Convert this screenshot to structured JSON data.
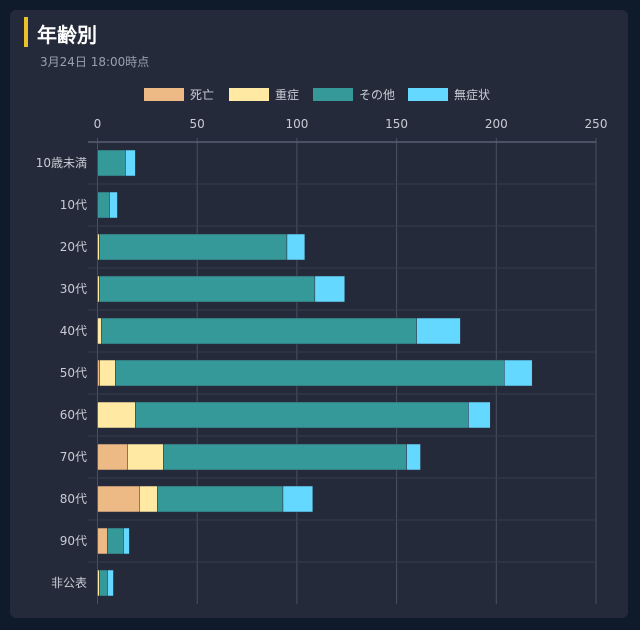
{
  "header": {
    "title": "年齢別",
    "subtitle": "3月24日 18:00時点"
  },
  "chart_data": {
    "type": "bar",
    "orientation": "horizontal",
    "stacked": true,
    "title": "年齢別",
    "subtitle": "3月24日 18:00時点",
    "categories": [
      "10歳未満",
      "10代",
      "20代",
      "30代",
      "40代",
      "50代",
      "60代",
      "70代",
      "80代",
      "90代",
      "非公表"
    ],
    "series": [
      {
        "name": "死亡",
        "color": "#edb985",
        "values": [
          0,
          0,
          0,
          0,
          0,
          1,
          0,
          15,
          21,
          5,
          0
        ]
      },
      {
        "name": "重症",
        "color": "#ffe9a3",
        "values": [
          0,
          0,
          1,
          1,
          2,
          8,
          19,
          18,
          9,
          0,
          1
        ]
      },
      {
        "name": "その他",
        "color": "#35999a",
        "values": [
          14,
          6,
          94,
          108,
          158,
          195,
          167,
          122,
          63,
          8,
          4
        ]
      },
      {
        "name": "無症状",
        "color": "#64d8ff",
        "values": [
          5,
          4,
          9,
          15,
          22,
          14,
          11,
          7,
          15,
          3,
          3
        ]
      }
    ],
    "xlim": [
      0,
      250
    ],
    "xticks": [
      "0",
      "50",
      "100",
      "150",
      "200",
      "250"
    ],
    "xtick_values": [
      0,
      50,
      100,
      150,
      200,
      250
    ],
    "grid": true,
    "legend": "top-center"
  }
}
